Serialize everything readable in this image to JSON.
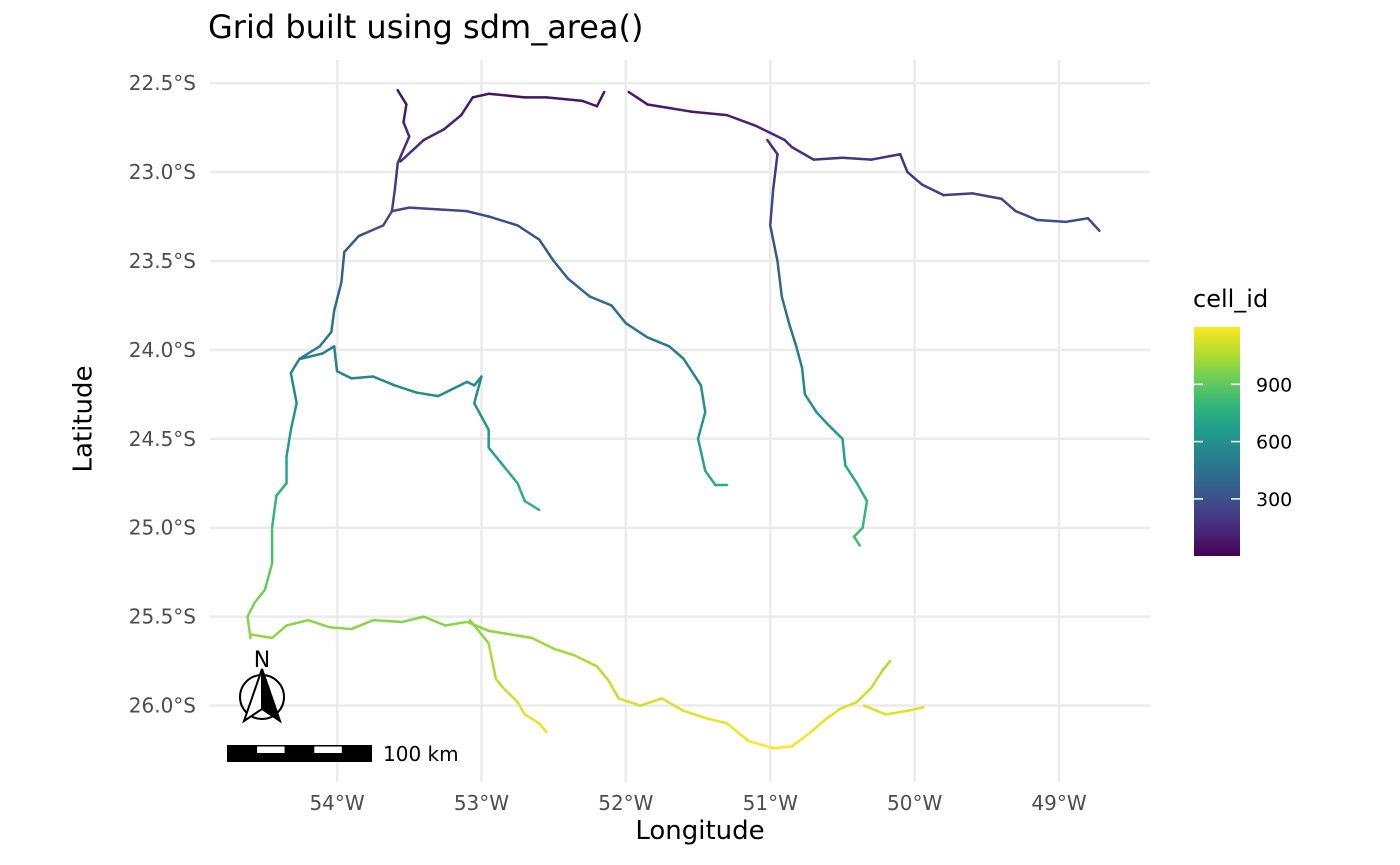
{
  "chart_data": {
    "type": "line",
    "title": "Grid built using sdm_area()",
    "xlabel": "Longitude",
    "ylabel": "Latitude",
    "xlim": [
      -54.88,
      -48.37
    ],
    "ylim": [
      -26.43,
      -22.37
    ],
    "x_ticks": [
      {
        "value": -54,
        "label": "54°W"
      },
      {
        "value": -53,
        "label": "53°W"
      },
      {
        "value": -52,
        "label": "52°W"
      },
      {
        "value": -51,
        "label": "51°W"
      },
      {
        "value": -50,
        "label": "50°W"
      },
      {
        "value": -49,
        "label": "49°W"
      }
    ],
    "y_ticks": [
      {
        "value": -22.5,
        "label": "22.5°S"
      },
      {
        "value": -23.0,
        "label": "23.0°S"
      },
      {
        "value": -23.5,
        "label": "23.5°S"
      },
      {
        "value": -24.0,
        "label": "24.0°S"
      },
      {
        "value": -24.5,
        "label": "24.5°S"
      },
      {
        "value": -25.0,
        "label": "25.0°S"
      },
      {
        "value": -25.5,
        "label": "25.5°S"
      },
      {
        "value": -26.0,
        "label": "26.0°S"
      }
    ],
    "grid": true,
    "legend": {
      "title": "cell_id",
      "placement": "right",
      "range": [
        1,
        1200
      ],
      "ticks": [
        300,
        600,
        900
      ],
      "tick_labels": [
        "300",
        "600",
        "900"
      ],
      "colormap": [
        "#440154",
        "#482878",
        "#3e4989",
        "#31688e",
        "#26828e",
        "#1f9e89",
        "#35b779",
        "#6ece58",
        "#b5de2b",
        "#fde725"
      ]
    },
    "series": [
      {
        "points": [
          [
            -53.58,
            -22.54
          ],
          [
            -53.52,
            -22.62
          ],
          [
            -53.54,
            -22.72
          ],
          [
            -53.5,
            -22.8
          ],
          [
            -53.58,
            -22.95
          ],
          [
            -53.6,
            -23.1
          ],
          [
            -53.62,
            -23.22
          ],
          [
            -53.68,
            -23.3
          ],
          [
            -53.85,
            -23.36
          ],
          [
            -53.95,
            -23.45
          ],
          [
            -53.97,
            -23.62
          ],
          [
            -54.02,
            -23.78
          ],
          [
            -54.04,
            -23.9
          ],
          [
            -54.12,
            -23.98
          ],
          [
            -54.26,
            -24.05
          ],
          [
            -54.32,
            -24.13
          ],
          [
            -54.28,
            -24.3
          ],
          [
            -54.32,
            -24.45
          ],
          [
            -54.35,
            -24.6
          ],
          [
            -54.35,
            -24.75
          ],
          [
            -54.42,
            -24.82
          ],
          [
            -54.45,
            -25.0
          ],
          [
            -54.45,
            -25.2
          ],
          [
            -54.5,
            -25.35
          ],
          [
            -54.57,
            -25.42
          ],
          [
            -54.62,
            -25.5
          ],
          [
            -54.6,
            -25.62
          ]
        ]
      },
      {
        "points": [
          [
            -53.56,
            -22.94
          ],
          [
            -53.4,
            -22.82
          ],
          [
            -53.26,
            -22.76
          ],
          [
            -53.14,
            -22.68
          ],
          [
            -53.06,
            -22.58
          ],
          [
            -52.95,
            -22.56
          ],
          [
            -52.7,
            -22.58
          ],
          [
            -52.55,
            -22.58
          ],
          [
            -52.3,
            -22.6
          ],
          [
            -52.2,
            -22.63
          ],
          [
            -52.15,
            -22.55
          ]
        ]
      },
      {
        "points": [
          [
            -51.98,
            -22.55
          ],
          [
            -51.85,
            -22.62
          ],
          [
            -51.7,
            -22.64
          ],
          [
            -51.55,
            -22.66
          ],
          [
            -51.3,
            -22.68
          ],
          [
            -51.1,
            -22.74
          ],
          [
            -51.0,
            -22.78
          ],
          [
            -50.9,
            -22.82
          ],
          [
            -50.85,
            -22.86
          ],
          [
            -50.7,
            -22.93
          ],
          [
            -50.5,
            -22.92
          ],
          [
            -50.3,
            -22.93
          ],
          [
            -50.1,
            -22.9
          ],
          [
            -50.05,
            -23.0
          ],
          [
            -49.95,
            -23.07
          ],
          [
            -49.8,
            -23.13
          ],
          [
            -49.6,
            -23.12
          ],
          [
            -49.4,
            -23.15
          ],
          [
            -49.3,
            -23.22
          ],
          [
            -49.15,
            -23.27
          ],
          [
            -48.95,
            -23.28
          ],
          [
            -48.8,
            -23.26
          ],
          [
            -48.72,
            -23.33
          ]
        ]
      },
      {
        "points": [
          [
            -51.02,
            -22.82
          ],
          [
            -50.95,
            -22.9
          ],
          [
            -50.98,
            -23.1
          ],
          [
            -51.0,
            -23.3
          ],
          [
            -50.95,
            -23.5
          ],
          [
            -50.92,
            -23.7
          ],
          [
            -50.87,
            -23.85
          ],
          [
            -50.82,
            -23.98
          ],
          [
            -50.78,
            -24.1
          ],
          [
            -50.76,
            -24.25
          ],
          [
            -50.68,
            -24.35
          ],
          [
            -50.6,
            -24.42
          ],
          [
            -50.5,
            -24.5
          ],
          [
            -50.48,
            -24.65
          ],
          [
            -50.4,
            -24.75
          ],
          [
            -50.33,
            -24.85
          ],
          [
            -50.36,
            -25.0
          ],
          [
            -50.42,
            -25.05
          ],
          [
            -50.38,
            -25.1
          ]
        ]
      },
      {
        "points": [
          [
            -53.62,
            -23.22
          ],
          [
            -53.5,
            -23.2
          ],
          [
            -53.3,
            -23.21
          ],
          [
            -53.1,
            -23.22
          ],
          [
            -52.95,
            -23.25
          ],
          [
            -52.75,
            -23.3
          ],
          [
            -52.6,
            -23.38
          ],
          [
            -52.5,
            -23.5
          ],
          [
            -52.4,
            -23.6
          ],
          [
            -52.25,
            -23.7
          ],
          [
            -52.1,
            -23.75
          ],
          [
            -52.0,
            -23.85
          ],
          [
            -51.85,
            -23.93
          ],
          [
            -51.7,
            -23.98
          ],
          [
            -51.6,
            -24.05
          ],
          [
            -51.48,
            -24.2
          ],
          [
            -51.45,
            -24.35
          ],
          [
            -51.5,
            -24.5
          ],
          [
            -51.45,
            -24.68
          ],
          [
            -51.38,
            -24.76
          ],
          [
            -51.3,
            -24.76
          ]
        ]
      },
      {
        "points": [
          [
            -54.25,
            -24.05
          ],
          [
            -54.1,
            -24.02
          ],
          [
            -54.02,
            -23.98
          ],
          [
            -54.0,
            -24.12
          ],
          [
            -53.9,
            -24.16
          ],
          [
            -53.75,
            -24.15
          ],
          [
            -53.6,
            -24.2
          ],
          [
            -53.45,
            -24.24
          ],
          [
            -53.3,
            -24.26
          ],
          [
            -53.2,
            -24.22
          ],
          [
            -53.1,
            -24.18
          ],
          [
            -53.05,
            -24.2
          ],
          [
            -53.0,
            -24.15
          ],
          [
            -53.05,
            -24.3
          ],
          [
            -52.95,
            -24.45
          ],
          [
            -52.95,
            -24.55
          ],
          [
            -52.85,
            -24.65
          ],
          [
            -52.75,
            -24.75
          ],
          [
            -52.7,
            -24.85
          ],
          [
            -52.6,
            -24.9
          ]
        ]
      },
      {
        "points": [
          [
            -54.6,
            -25.6
          ],
          [
            -54.45,
            -25.62
          ],
          [
            -54.35,
            -25.55
          ],
          [
            -54.2,
            -25.52
          ],
          [
            -54.05,
            -25.56
          ],
          [
            -53.9,
            -25.57
          ],
          [
            -53.75,
            -25.52
          ],
          [
            -53.55,
            -25.53
          ],
          [
            -53.4,
            -25.5
          ],
          [
            -53.25,
            -25.55
          ],
          [
            -53.1,
            -25.53
          ],
          [
            -52.95,
            -25.58
          ],
          [
            -52.8,
            -25.6
          ],
          [
            -52.65,
            -25.62
          ],
          [
            -52.5,
            -25.68
          ],
          [
            -52.35,
            -25.72
          ],
          [
            -52.2,
            -25.78
          ],
          [
            -52.12,
            -25.86
          ],
          [
            -52.05,
            -25.96
          ],
          [
            -51.9,
            -26.0
          ],
          [
            -51.75,
            -25.96
          ],
          [
            -51.6,
            -26.03
          ],
          [
            -51.45,
            -26.07
          ],
          [
            -51.3,
            -26.1
          ],
          [
            -51.15,
            -26.2
          ],
          [
            -50.98,
            -26.24
          ],
          [
            -50.85,
            -26.23
          ],
          [
            -50.72,
            -26.15
          ],
          [
            -50.62,
            -26.08
          ],
          [
            -50.52,
            -26.02
          ],
          [
            -50.4,
            -25.98
          ],
          [
            -50.3,
            -25.9
          ],
          [
            -50.22,
            -25.8
          ],
          [
            -50.17,
            -25.75
          ]
        ]
      },
      {
        "points": [
          [
            -53.08,
            -25.52
          ],
          [
            -52.95,
            -25.65
          ],
          [
            -52.9,
            -25.85
          ],
          [
            -52.85,
            -25.9
          ],
          [
            -52.75,
            -25.98
          ],
          [
            -52.7,
            -26.05
          ],
          [
            -52.6,
            -26.1
          ],
          [
            -52.55,
            -26.15
          ]
        ]
      },
      {
        "points": [
          [
            -50.35,
            -26.0
          ],
          [
            -50.2,
            -26.05
          ],
          [
            -50.05,
            -26.03
          ],
          [
            -49.94,
            -26.01
          ]
        ]
      }
    ],
    "scale_bar": {
      "label": "100 km"
    },
    "north_arrow": {
      "label": "N"
    }
  }
}
